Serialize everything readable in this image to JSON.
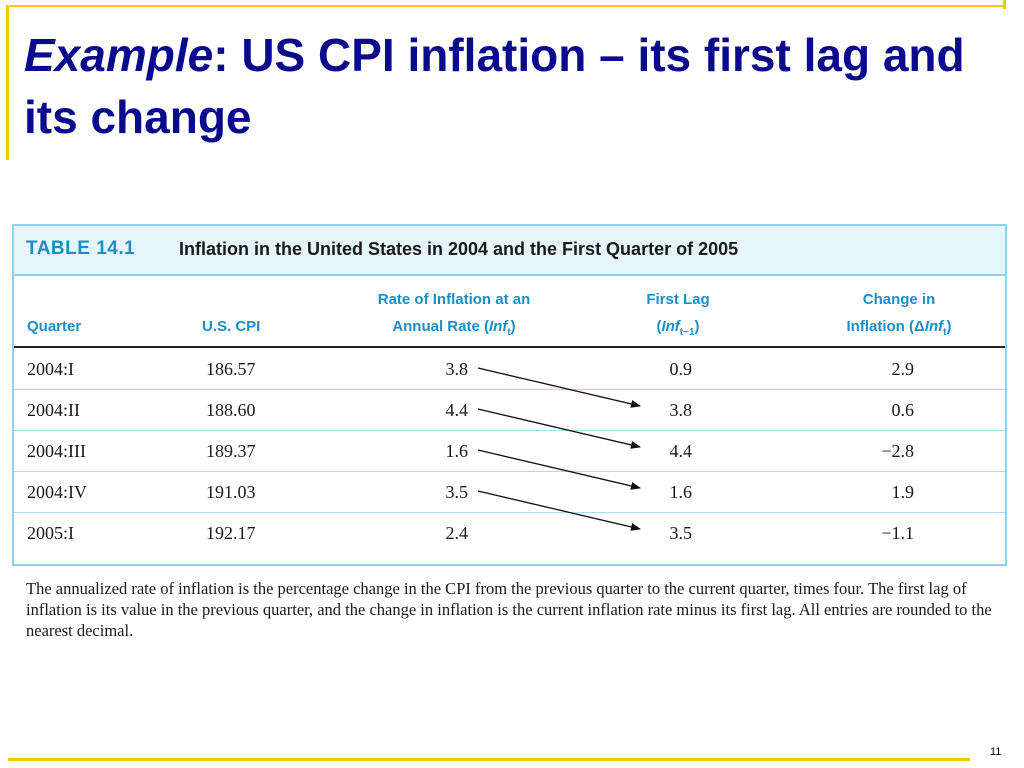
{
  "slide": {
    "title_italic": "Example",
    "title_rest": ":  US CPI inflation – its first lag and its change",
    "page_number": "11"
  },
  "table": {
    "number": "TABLE 14.1",
    "caption": "Inflation in the United States in 2004 and the First Quarter of 2005",
    "headers": {
      "quarter": "Quarter",
      "cpi": "U.S. CPI",
      "inflation_line1": "Rate of Inflation at an",
      "inflation_line2_pre": "Annual Rate (",
      "inflation_var": "Inf",
      "inflation_sub": "t",
      "inflation_line2_post": ")",
      "lag_line1": "First Lag",
      "lag_pre": "(",
      "lag_var": "Inf",
      "lag_sub": "t−1",
      "lag_post": ")",
      "change_line1": "Change in",
      "change_line2_pre": "Inflation (",
      "change_delta": "Δ",
      "change_var": "Inf",
      "change_sub": "t",
      "change_post": ")"
    },
    "rows": [
      {
        "quarter": "2004:I",
        "cpi": "186.57",
        "inflation": "3.8",
        "first_lag": "0.9",
        "change": "2.9"
      },
      {
        "quarter": "2004:II",
        "cpi": "188.60",
        "inflation": "4.4",
        "first_lag": "3.8",
        "change": "0.6"
      },
      {
        "quarter": "2004:III",
        "cpi": "189.37",
        "inflation": "1.6",
        "first_lag": "4.4",
        "change": "−2.8"
      },
      {
        "quarter": "2004:IV",
        "cpi": "191.03",
        "inflation": "3.5",
        "first_lag": "1.6",
        "change": "1.9"
      },
      {
        "quarter": "2005:I",
        "cpi": "192.17",
        "inflation": "2.4",
        "first_lag": "3.5",
        "change": "−1.1"
      }
    ],
    "footnote": "The annualized rate of inflation is the percentage change in the CPI from the previous quarter to the current quarter, times four. The first lag of inflation is its value in the previous quarter, and the change in inflation is the current inflation rate minus its first lag. All entries are rounded to the nearest decimal."
  },
  "colors": {
    "title": "#0a0a8c",
    "accent_rule": "#f0c800",
    "table_header": "#1b8ec5",
    "table_border": "#8ed1ea"
  }
}
